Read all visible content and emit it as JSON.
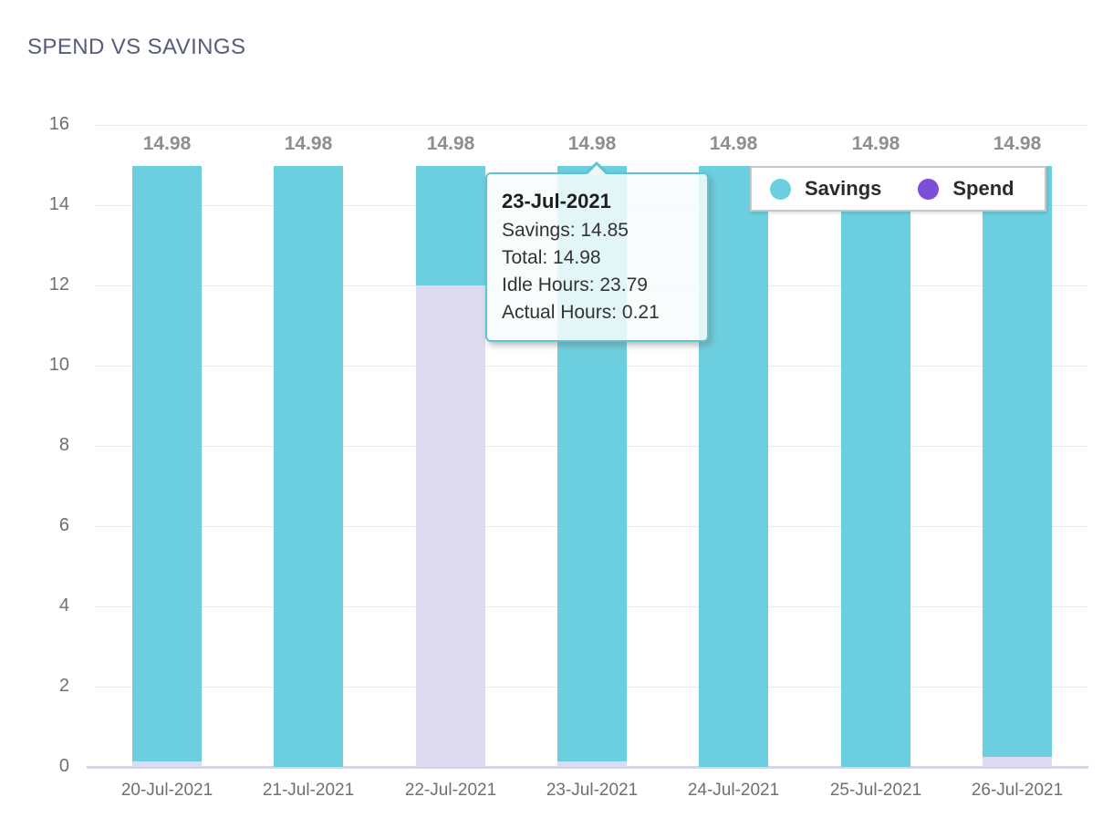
{
  "header": {
    "title": "SPEND VS SAVINGS"
  },
  "chart_data": {
    "type": "bar",
    "stacked": true,
    "title": "SPEND VS SAVINGS",
    "categories": [
      "20-Jul-2021",
      "21-Jul-2021",
      "22-Jul-2021",
      "23-Jul-2021",
      "24-Jul-2021",
      "25-Jul-2021",
      "26-Jul-2021"
    ],
    "series": [
      {
        "name": "Spend",
        "values": [
          0.13,
          0,
          12.0,
          0.13,
          0,
          0,
          0.25
        ]
      },
      {
        "name": "Savings",
        "values": [
          14.85,
          14.98,
          2.98,
          14.85,
          14.98,
          14.98,
          14.73
        ]
      }
    ],
    "totals": [
      14.98,
      14.98,
      14.98,
      14.98,
      14.98,
      14.98,
      14.98
    ],
    "bar_total_labels": [
      "14.98",
      "14.98",
      "14.98",
      "14.98",
      "14.98",
      "14.98",
      "14.98"
    ],
    "xlabel": "",
    "ylabel": "",
    "ylim": [
      0,
      16
    ],
    "yticks": [
      0,
      2,
      4,
      6,
      8,
      10,
      12,
      14,
      16
    ],
    "grid": "horizontal",
    "legend_position": "top-right"
  },
  "legend": {
    "items": [
      {
        "label": "Savings",
        "color": "#6ccfdf"
      },
      {
        "label": "Spend",
        "color": "#7b4fd8"
      }
    ]
  },
  "tooltip": {
    "title": "23-Jul-2021",
    "anchor_category": "23-Jul-2021",
    "rows": [
      "Savings: 14.85",
      "Total: 14.98",
      "Idle Hours: 23.79",
      "Actual Hours: 0.21"
    ]
  },
  "colors": {
    "savings_bar": "#6ccfdf",
    "spend_bar": "#dedaf0",
    "spend_legend": "#7b4fd8",
    "gridline": "#e8e8e8",
    "axis_line": "#d2d6e4",
    "tick_label": "#6f6f6f",
    "bar_total_label": "#8e8e8e",
    "title": "#575c7a",
    "tooltip_border": "#5fc3d3"
  }
}
